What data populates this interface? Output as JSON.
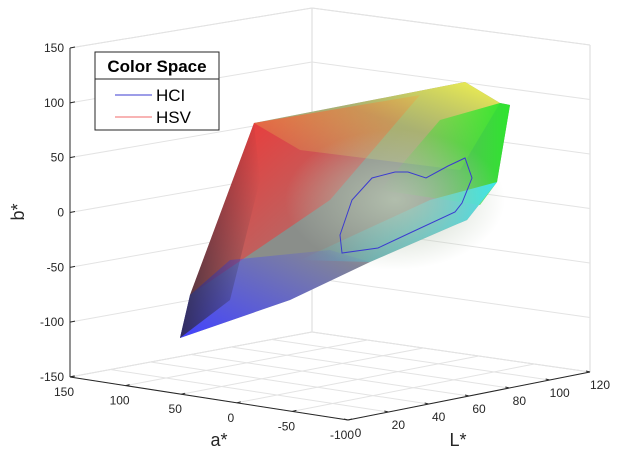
{
  "chart_data": {
    "type": "scatter",
    "projection": "3d",
    "axes": {
      "x": {
        "label": "L*",
        "range": [
          0,
          120
        ],
        "ticks": [
          0,
          20,
          40,
          60,
          80,
          100,
          120
        ]
      },
      "y": {
        "label": "a*",
        "range": [
          -100,
          150
        ],
        "ticks": [
          150,
          100,
          50,
          0,
          -50,
          -100
        ]
      },
      "z": {
        "label": "b*",
        "range": [
          -150,
          150
        ],
        "ticks": [
          150,
          100,
          50,
          0,
          -50,
          -100,
          -150
        ]
      }
    },
    "grid": true,
    "legend": {
      "title": "Color Space",
      "placement": "top-left",
      "entries": [
        {
          "name": "HCI",
          "color": "#3b3bd0"
        },
        {
          "name": "HSV",
          "color": "#f06868"
        }
      ]
    },
    "series": [
      {
        "name": "HSV",
        "kind": "surface",
        "corners": [
          {
            "label": "red",
            "L": 55,
            "a": 80,
            "b": 70,
            "color": "#ff2a2a"
          },
          {
            "label": "yellow",
            "L": 97,
            "a": -20,
            "b": 95,
            "color": "#f5f54a"
          },
          {
            "label": "green",
            "L": 88,
            "a": -85,
            "b": 85,
            "color": "#33e533"
          },
          {
            "label": "cyan",
            "L": 91,
            "a": -50,
            "b": -15,
            "color": "#3ae8ee"
          },
          {
            "label": "blue",
            "L": 32,
            "a": 80,
            "b": -108,
            "color": "#4040ff"
          },
          {
            "label": "black",
            "L": 0,
            "a": 0,
            "b": 0,
            "color": "#3a3040"
          }
        ]
      },
      {
        "name": "HCI",
        "kind": "outline",
        "color": "#3b3bd0",
        "points": [
          {
            "L": 58,
            "a": 0,
            "b": -32
          },
          {
            "L": 57,
            "a": 2,
            "b": -20
          },
          {
            "L": 63,
            "a": -5,
            "b": 18
          },
          {
            "L": 70,
            "a": -12,
            "b": 35
          },
          {
            "L": 78,
            "a": -18,
            "b": 40
          },
          {
            "L": 80,
            "a": -25,
            "b": 25
          },
          {
            "L": 88,
            "a": -35,
            "b": 40
          },
          {
            "L": 92,
            "a": -40,
            "b": 30
          },
          {
            "L": 90,
            "a": -42,
            "b": 0
          },
          {
            "L": 84,
            "a": -40,
            "b": -8
          },
          {
            "L": 74,
            "a": -28,
            "b": -20
          },
          {
            "L": 63,
            "a": -12,
            "b": -32
          }
        ]
      }
    ]
  }
}
